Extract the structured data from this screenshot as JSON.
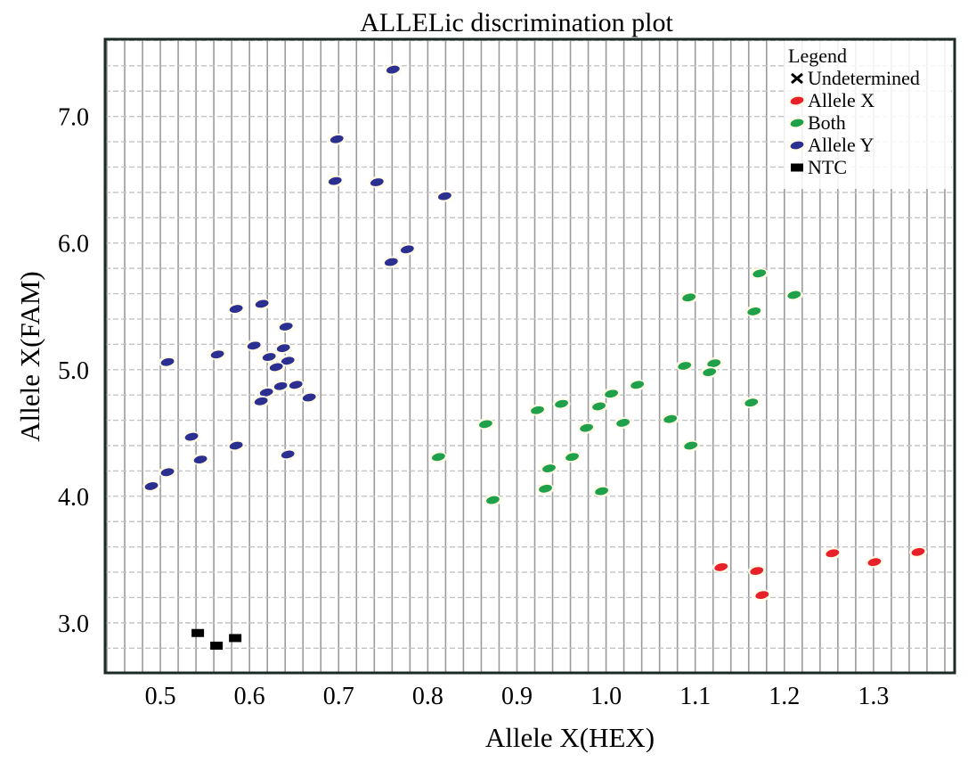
{
  "chart_data": {
    "type": "scatter",
    "title": "ALLELic discrimination plot",
    "xlabel": "Allele X(HEX)",
    "ylabel": "Allele X(FAM)",
    "xlim": [
      0.438,
      1.391
    ],
    "ylim": [
      2.605,
      7.61
    ],
    "xticks": [
      "0.5",
      "0.6",
      "0.7",
      "0.8",
      "0.9",
      "1.0",
      "1.1",
      "1.2",
      "1.3"
    ],
    "yticks": [
      "3.0",
      "4.0",
      "5.0",
      "6.0",
      "7.0"
    ],
    "grid": true,
    "grid_step": {
      "x": 0.02,
      "y": 0.2
    },
    "legend": {
      "title": "Legend",
      "placement": "top-right",
      "entries": [
        "Undetermined",
        "Allele X",
        "Both",
        "Allele Y",
        "NTC"
      ]
    },
    "colors": {
      "Undetermined": "#000000",
      "Allele X": "#e8202a",
      "Both": "#1fa04a",
      "Allele Y": "#2b2f8f",
      "NTC": "#000000"
    },
    "series": [
      {
        "name": "Undetermined",
        "marker": "x",
        "points": []
      },
      {
        "name": "Allele X",
        "marker": "blob",
        "points": [
          [
            1.129,
            3.44
          ],
          [
            1.169,
            3.41
          ],
          [
            1.175,
            3.22
          ],
          [
            1.254,
            3.55
          ],
          [
            1.301,
            3.48
          ],
          [
            1.35,
            3.56
          ]
        ]
      },
      {
        "name": "Both",
        "marker": "blob",
        "points": [
          [
            0.812,
            4.31
          ],
          [
            0.865,
            4.57
          ],
          [
            0.873,
            3.97
          ],
          [
            0.923,
            4.68
          ],
          [
            0.95,
            4.73
          ],
          [
            0.936,
            4.22
          ],
          [
            0.932,
            4.06
          ],
          [
            0.962,
            4.31
          ],
          [
            0.978,
            4.54
          ],
          [
            0.992,
            4.71
          ],
          [
            1.006,
            4.81
          ],
          [
            0.995,
            4.04
          ],
          [
            1.019,
            4.58
          ],
          [
            1.035,
            4.88
          ],
          [
            1.072,
            4.61
          ],
          [
            1.095,
            4.4
          ],
          [
            1.172,
            5.76
          ],
          [
            1.093,
            5.57
          ],
          [
            1.211,
            5.59
          ],
          [
            1.166,
            5.46
          ],
          [
            1.088,
            5.03
          ],
          [
            1.121,
            5.05
          ],
          [
            1.116,
            4.98
          ],
          [
            1.163,
            4.74
          ]
        ]
      },
      {
        "name": "Allele Y",
        "marker": "blob",
        "points": [
          [
            0.761,
            7.37
          ],
          [
            0.698,
            6.82
          ],
          [
            0.696,
            6.49
          ],
          [
            0.743,
            6.48
          ],
          [
            0.819,
            6.37
          ],
          [
            0.777,
            5.95
          ],
          [
            0.759,
            5.85
          ],
          [
            0.585,
            5.48
          ],
          [
            0.614,
            5.52
          ],
          [
            0.641,
            5.34
          ],
          [
            0.605,
            5.19
          ],
          [
            0.638,
            5.17
          ],
          [
            0.564,
            5.12
          ],
          [
            0.508,
            5.06
          ],
          [
            0.622,
            5.1
          ],
          [
            0.643,
            5.07
          ],
          [
            0.63,
            5.02
          ],
          [
            0.635,
            4.87
          ],
          [
            0.652,
            4.88
          ],
          [
            0.619,
            4.82
          ],
          [
            0.613,
            4.75
          ],
          [
            0.667,
            4.78
          ],
          [
            0.535,
            4.47
          ],
          [
            0.585,
            4.4
          ],
          [
            0.545,
            4.29
          ],
          [
            0.643,
            4.33
          ],
          [
            0.508,
            4.19
          ],
          [
            0.49,
            4.08
          ]
        ]
      },
      {
        "name": "NTC",
        "marker": "square",
        "points": [
          [
            0.542,
            2.92
          ],
          [
            0.563,
            2.82
          ],
          [
            0.584,
            2.88
          ]
        ]
      }
    ]
  }
}
